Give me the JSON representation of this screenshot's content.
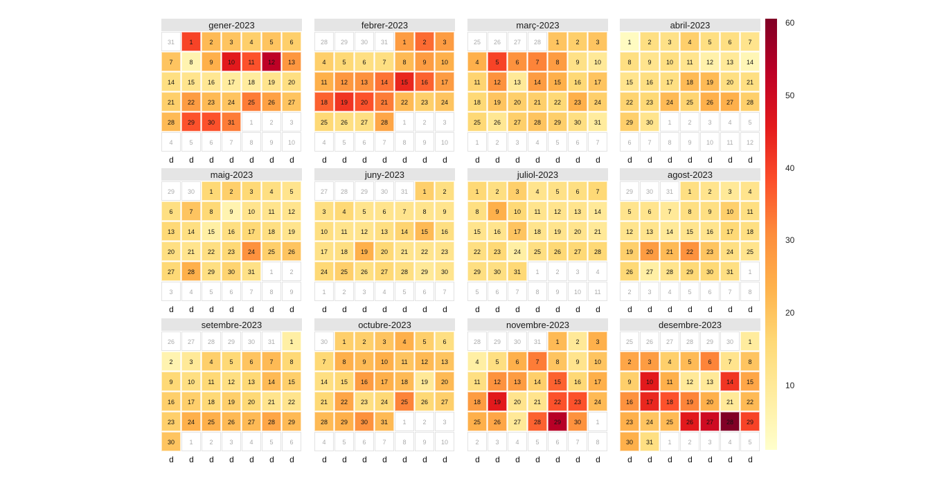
{
  "chart_data": {
    "type": "heatmap",
    "subtype": "calendar",
    "year": 2023,
    "week_start": "saturday",
    "weekday_label": "d",
    "colorscale": "YlOrRd",
    "colorbar": {
      "min": 1.2,
      "max": 60.7,
      "ticks": [
        10,
        20,
        30,
        40,
        50,
        60
      ]
    },
    "months": [
      {
        "title": "gener-2023",
        "values": [
          40,
          22,
          20,
          18,
          20,
          18,
          20,
          6,
          24,
          46,
          38,
          53,
          29,
          14,
          12,
          11,
          9,
          9,
          12,
          14,
          18,
          28,
          22,
          20,
          33,
          27,
          20,
          22,
          38,
          38,
          33
        ]
      },
      {
        "title": "febrer-2023",
        "values": [
          28,
          35,
          28,
          18,
          16,
          14,
          14,
          22,
          28,
          24,
          24,
          29,
          30,
          34,
          44,
          36,
          28,
          36,
          42,
          38,
          33,
          22,
          18,
          20,
          16,
          14,
          14,
          26
        ]
      },
      {
        "title": "març-2023",
        "values": [
          20,
          18,
          20,
          24,
          40,
          30,
          32,
          28,
          13,
          10,
          17,
          30,
          10,
          28,
          24,
          16,
          20,
          16,
          20,
          18,
          18,
          16,
          24,
          18,
          16,
          11,
          18,
          20,
          18,
          14,
          9
        ]
      },
      {
        "title": "abril-2023",
        "values": [
          3,
          14,
          13,
          18,
          14,
          14,
          12,
          14,
          12,
          14,
          12,
          7,
          10,
          5,
          12,
          14,
          14,
          22,
          22,
          14,
          14,
          17,
          16,
          22,
          17,
          24,
          24,
          18,
          18,
          12
        ]
      },
      {
        "title": "maig-2023",
        "values": [
          16,
          18,
          16,
          14,
          12,
          14,
          20,
          16,
          6,
          12,
          12,
          12,
          16,
          14,
          8,
          14,
          16,
          14,
          12,
          14,
          12,
          14,
          16,
          30,
          18,
          20,
          16,
          24,
          14,
          17,
          13
        ]
      },
      {
        "title": "juny-2023",
        "values": [
          18,
          14,
          14,
          16,
          12,
          12,
          12,
          12,
          12,
          14,
          12,
          12,
          14,
          17,
          22,
          14,
          13,
          14,
          24,
          16,
          12,
          12,
          12,
          16,
          18,
          14,
          16,
          14,
          10,
          12
        ]
      },
      {
        "title": "juliol-2023",
        "values": [
          16,
          14,
          18,
          12,
          13,
          14,
          16,
          14,
          24,
          16,
          12,
          12,
          12,
          10,
          12,
          12,
          20,
          12,
          12,
          12,
          10,
          14,
          16,
          8,
          14,
          16,
          16,
          16,
          14,
          14,
          16
        ]
      },
      {
        "title": "agost-2023",
        "values": [
          14,
          12,
          10,
          12,
          12,
          12,
          10,
          14,
          14,
          18,
          14,
          12,
          12,
          10,
          12,
          12,
          16,
          14,
          18,
          28,
          22,
          30,
          20,
          14,
          12,
          16,
          8,
          12,
          16,
          16,
          14
        ]
      },
      {
        "title": "setembre-2023",
        "values": [
          8,
          6,
          10,
          18,
          16,
          20,
          22,
          16,
          16,
          14,
          16,
          14,
          16,
          22,
          18,
          18,
          18,
          16,
          18,
          16,
          12,
          12,
          18,
          24,
          24,
          22,
          22,
          26,
          22,
          20
        ]
      },
      {
        "title": "octubre-2023",
        "values": [
          18,
          18,
          20,
          24,
          18,
          14,
          16,
          24,
          22,
          24,
          20,
          22,
          20,
          14,
          16,
          28,
          24,
          22,
          10,
          22,
          16,
          26,
          14,
          16,
          32,
          16,
          18,
          22,
          24,
          30,
          22
        ]
      },
      {
        "title": "novembre-2023",
        "values": [
          22,
          10,
          24,
          8,
          14,
          24,
          33,
          20,
          12,
          20,
          14,
          30,
          28,
          18,
          36,
          16,
          24,
          28,
          46,
          12,
          12,
          38,
          38,
          22,
          24,
          26,
          10,
          36,
          54,
          30
        ]
      },
      {
        "title": "desembre-2023",
        "values": [
          9,
          26,
          28,
          18,
          22,
          32,
          12,
          20,
          18,
          46,
          24,
          10,
          10,
          42,
          26,
          30,
          44,
          38,
          32,
          24,
          10,
          22,
          24,
          20,
          22,
          46,
          50,
          61,
          40,
          24,
          14
        ]
      }
    ]
  }
}
